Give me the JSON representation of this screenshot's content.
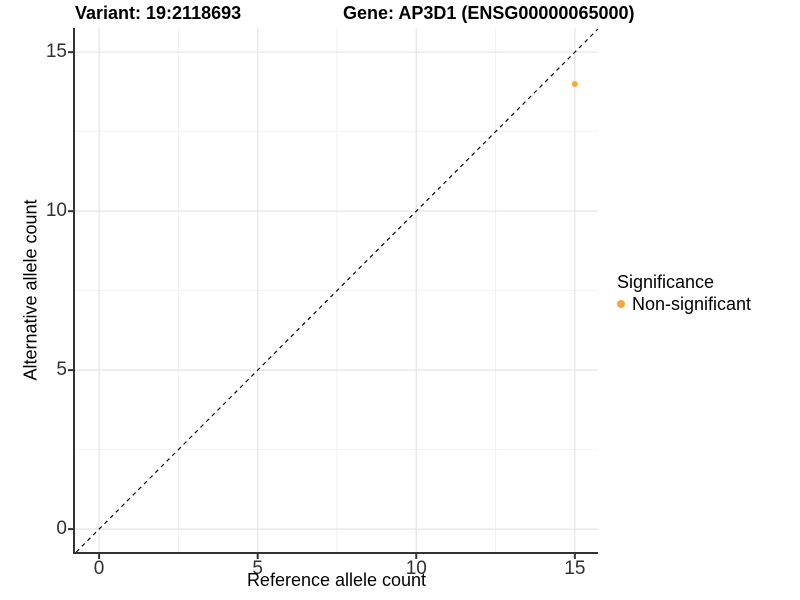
{
  "plot_titles": {
    "variant": "Variant: 19:2118693",
    "gene": "Gene: AP3D1 (ENSG00000065000)"
  },
  "axes": {
    "x_title": "Reference allele count",
    "y_title": "Alternative allele count"
  },
  "legend": {
    "title": "Significance",
    "items": [
      {
        "label": "Non-significant",
        "color": "#FAA43A"
      }
    ]
  },
  "colors": {
    "background": "#ffffff",
    "grid_major": "#e5e5e5",
    "grid_minor": "#f2f2f2",
    "axis_line": "#333333",
    "tick_mark": "#333333",
    "tick_text": "#303030",
    "identity_line": "#000000",
    "point": "#FAA43A"
  },
  "chart_data": {
    "type": "scatter",
    "title": "Variant: 19:2118693 | Gene: AP3D1 (ENSG00000065000)",
    "xlabel": "Reference allele count",
    "ylabel": "Alternative allele count",
    "xlim": [
      -0.76,
      15.73
    ],
    "ylim": [
      -0.72,
      15.76
    ],
    "x_ticks": [
      0,
      5,
      10,
      15
    ],
    "y_ticks": [
      0,
      5,
      10,
      15
    ],
    "x_minor_ticks": [
      2.5,
      7.5,
      12.5
    ],
    "y_minor_ticks": [
      2.5,
      7.5,
      12.5
    ],
    "grid": true,
    "legend_position": "right",
    "series": [
      {
        "name": "Non-significant",
        "color": "#FAA43A",
        "points": [
          {
            "x": 15,
            "y": 14
          }
        ]
      }
    ],
    "reference_line": {
      "kind": "abline",
      "slope": 1,
      "intercept": 0,
      "style": "dashed",
      "color": "#000000"
    }
  }
}
